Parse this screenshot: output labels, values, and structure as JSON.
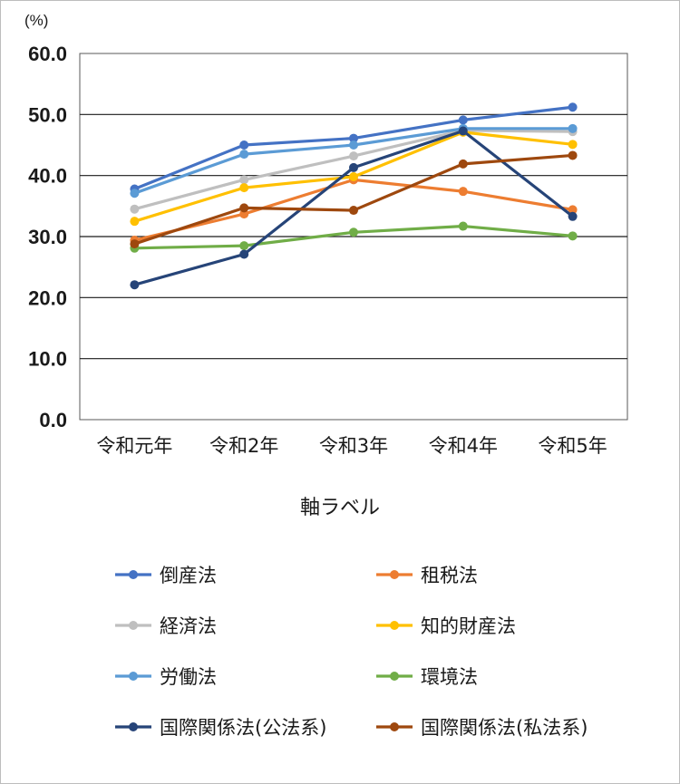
{
  "chart_data": {
    "type": "line",
    "unit_label": "(%)",
    "xlabel": "軸ラベル",
    "categories": [
      "令和元年",
      "令和2年",
      "令和3年",
      "令和4年",
      "令和5年"
    ],
    "ylim": [
      0,
      60
    ],
    "yticks": [
      "0.0",
      "10.0",
      "20.0",
      "30.0",
      "40.0",
      "50.0",
      "60.0"
    ],
    "grid": true,
    "legend_position": "bottom",
    "series": [
      {
        "name": "倒産法",
        "color": "#4472C4",
        "values": [
          37.8,
          45.0,
          46.1,
          49.1,
          51.2
        ]
      },
      {
        "name": "租税法",
        "color": "#ED7D31",
        "values": [
          29.4,
          33.7,
          39.3,
          37.4,
          34.4
        ]
      },
      {
        "name": "経済法",
        "color": "#BFBFBF",
        "values": [
          34.5,
          39.3,
          43.2,
          47.4,
          47.2
        ]
      },
      {
        "name": "知的財産法",
        "color": "#FFC000",
        "values": [
          32.5,
          38.0,
          39.8,
          47.1,
          45.1
        ]
      },
      {
        "name": "労働法",
        "color": "#5B9BD5",
        "values": [
          37.1,
          43.5,
          45.0,
          47.7,
          47.7
        ]
      },
      {
        "name": "環境法",
        "color": "#70AD47",
        "values": [
          28.1,
          28.5,
          30.7,
          31.7,
          30.1
        ]
      },
      {
        "name": "国際関係法(公法系)",
        "color": "#264478",
        "values": [
          22.1,
          27.1,
          41.3,
          47.3,
          33.3
        ]
      },
      {
        "name": "国際関係法(私法系)",
        "color": "#9E480E",
        "values": [
          28.8,
          34.7,
          34.3,
          41.9,
          43.3
        ]
      }
    ]
  }
}
